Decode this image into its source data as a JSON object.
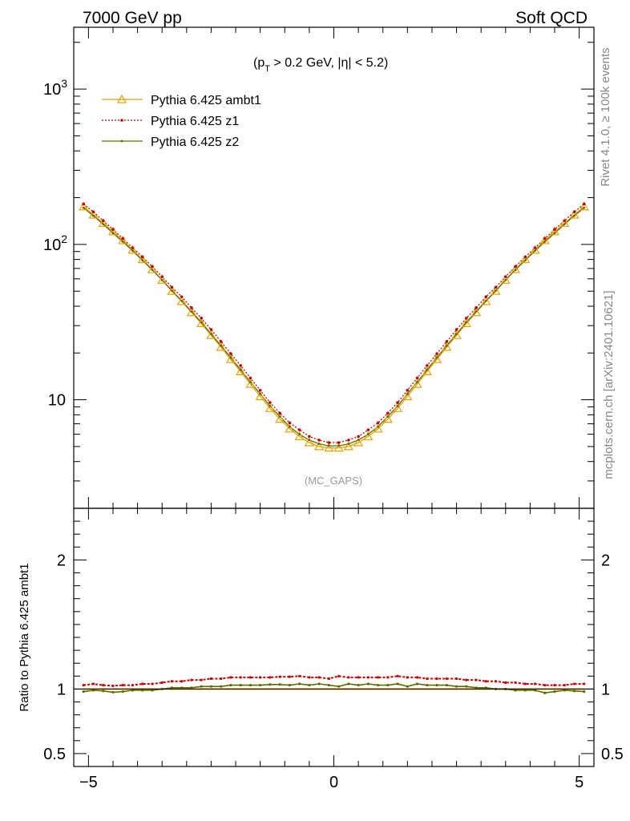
{
  "header": {
    "left": "7000 GeV pp",
    "right": "Soft QCD"
  },
  "side_text": {
    "rivet": "Rivet 4.1.0, ≥ 100k events",
    "mcplots": "mcplots.cern.ch [arXiv:2401.10621]"
  },
  "cut_label": {
    "open": "(p",
    "sub": "T",
    "rest": " > 0.2 GeV, |η| < 5.2)"
  },
  "watermark": "(MC_GAPS)",
  "ratio_ylabel": "Ratio to Pythia 6.425 ambt1",
  "colors": {
    "ambt1": "#e8a000",
    "z1": "#cc0000",
    "z2": "#5a6e00"
  },
  "chart_data": {
    "type": "line",
    "x": [
      -5.1,
      -4.9,
      -4.7,
      -4.5,
      -4.3,
      -4.1,
      -3.9,
      -3.7,
      -3.5,
      -3.3,
      -3.1,
      -2.9,
      -2.7,
      -2.5,
      -2.3,
      -2.1,
      -1.9,
      -1.7,
      -1.5,
      -1.3,
      -1.1,
      -0.9,
      -0.7,
      -0.5,
      -0.3,
      -0.1,
      0.1,
      0.3,
      0.5,
      0.7,
      0.9,
      1.1,
      1.3,
      1.5,
      1.7,
      1.9,
      2.1,
      2.3,
      2.5,
      2.7,
      2.9,
      3.1,
      3.3,
      3.5,
      3.7,
      3.9,
      4.1,
      4.3,
      4.5,
      4.7,
      4.9,
      5.1
    ],
    "series": [
      {
        "name": "Pythia 6.425 ambt1",
        "color": "#e8a000",
        "values": [
          175,
          155,
          137,
          121,
          106,
          92,
          80,
          69,
          59,
          50,
          43,
          36.5,
          31,
          26,
          21.8,
          18.2,
          15.2,
          12.6,
          10.5,
          8.8,
          7.5,
          6.5,
          5.8,
          5.3,
          5.0,
          4.9,
          4.9,
          5.0,
          5.3,
          5.8,
          6.5,
          7.5,
          8.8,
          10.5,
          12.6,
          15.2,
          18.2,
          21.8,
          26,
          31,
          36.5,
          43,
          50,
          59,
          69,
          80,
          92,
          106,
          121,
          137,
          155,
          175
        ]
      },
      {
        "name": "Pythia 6.425 z1",
        "color": "#cc0000",
        "values": [
          182,
          162,
          142,
          125,
          109,
          95,
          83,
          72,
          62,
          53,
          46,
          39.1,
          33.5,
          28.3,
          23.7,
          19.8,
          16.6,
          13.8,
          11.5,
          9.6,
          8.2,
          7.1,
          6.4,
          5.8,
          5.5,
          5.3,
          5.3,
          5.5,
          5.8,
          6.4,
          7.1,
          8.2,
          9.6,
          11.5,
          13.8,
          16.6,
          19.8,
          23.7,
          28.3,
          33.5,
          39.1,
          46,
          53,
          62,
          72,
          83,
          95,
          109,
          125,
          142,
          162,
          182
        ]
      },
      {
        "name": "Pythia 6.425 z2",
        "color": "#5a6e00",
        "values": [
          172,
          153,
          135,
          118,
          104,
          91,
          79,
          68.5,
          59,
          50.4,
          43.3,
          37,
          31.5,
          26.5,
          22.3,
          18.7,
          15.6,
          13,
          10.9,
          9.1,
          7.8,
          6.7,
          6.0,
          5.5,
          5.2,
          5.05,
          5.05,
          5.2,
          5.5,
          6.0,
          6.7,
          7.8,
          9.1,
          10.9,
          13,
          15.6,
          18.7,
          22.3,
          26.5,
          31.5,
          37,
          43.3,
          50.4,
          59,
          68.5,
          79,
          91,
          104,
          118,
          135,
          153,
          172
        ]
      }
    ],
    "ratio": {
      "ylabel": "Ratio to Pythia 6.425 ambt1",
      "ylim": [
        0.4,
        2.4
      ],
      "ticks": [
        0.5,
        1,
        2
      ],
      "tick_labels": [
        "0.5",
        "1",
        "2"
      ],
      "series": [
        {
          "name": "Pythia 6.425 z1",
          "color": "#cc0000",
          "values": [
            1.03,
            1.04,
            1.03,
            1.025,
            1.03,
            1.03,
            1.04,
            1.04,
            1.05,
            1.06,
            1.06,
            1.07,
            1.07,
            1.08,
            1.08,
            1.09,
            1.09,
            1.09,
            1.09,
            1.09,
            1.095,
            1.095,
            1.1,
            1.09,
            1.09,
            1.08,
            1.1,
            1.09,
            1.09,
            1.09,
            1.09,
            1.09,
            1.1,
            1.09,
            1.09,
            1.08,
            1.08,
            1.08,
            1.08,
            1.07,
            1.07,
            1.06,
            1.06,
            1.05,
            1.05,
            1.04,
            1.04,
            1.03,
            1.03,
            1.03,
            1.04,
            1.04
          ]
        },
        {
          "name": "Pythia 6.425 z2",
          "color": "#5a6e00",
          "values": [
            0.98,
            0.99,
            0.985,
            0.975,
            0.98,
            0.99,
            0.99,
            0.99,
            1.0,
            1.01,
            1.01,
            1.01,
            1.02,
            1.02,
            1.02,
            1.03,
            1.03,
            1.03,
            1.03,
            1.035,
            1.035,
            1.03,
            1.04,
            1.03,
            1.04,
            1.03,
            1.02,
            1.04,
            1.03,
            1.04,
            1.03,
            1.03,
            1.04,
            1.02,
            1.04,
            1.03,
            1.03,
            1.03,
            1.02,
            1.02,
            1.01,
            1.01,
            1.0,
            1.0,
            0.99,
            0.99,
            0.99,
            0.97,
            0.98,
            0.99,
            0.985,
            0.98
          ]
        }
      ]
    },
    "title": "",
    "xlabel": "",
    "ylabel": "",
    "xlim": [
      -5.3,
      5.3
    ],
    "ylim": [
      2.0,
      2500
    ],
    "yscale": "log",
    "xticks": [
      -5,
      0,
      5
    ],
    "xtick_labels": [
      "−5",
      "0",
      "5"
    ],
    "yticks": [
      10,
      100,
      1000
    ],
    "ytick_labels": [
      "10",
      "10",
      "10"
    ],
    "ytick_exponents": [
      "",
      "2",
      "3"
    ],
    "legend": "top-left"
  }
}
